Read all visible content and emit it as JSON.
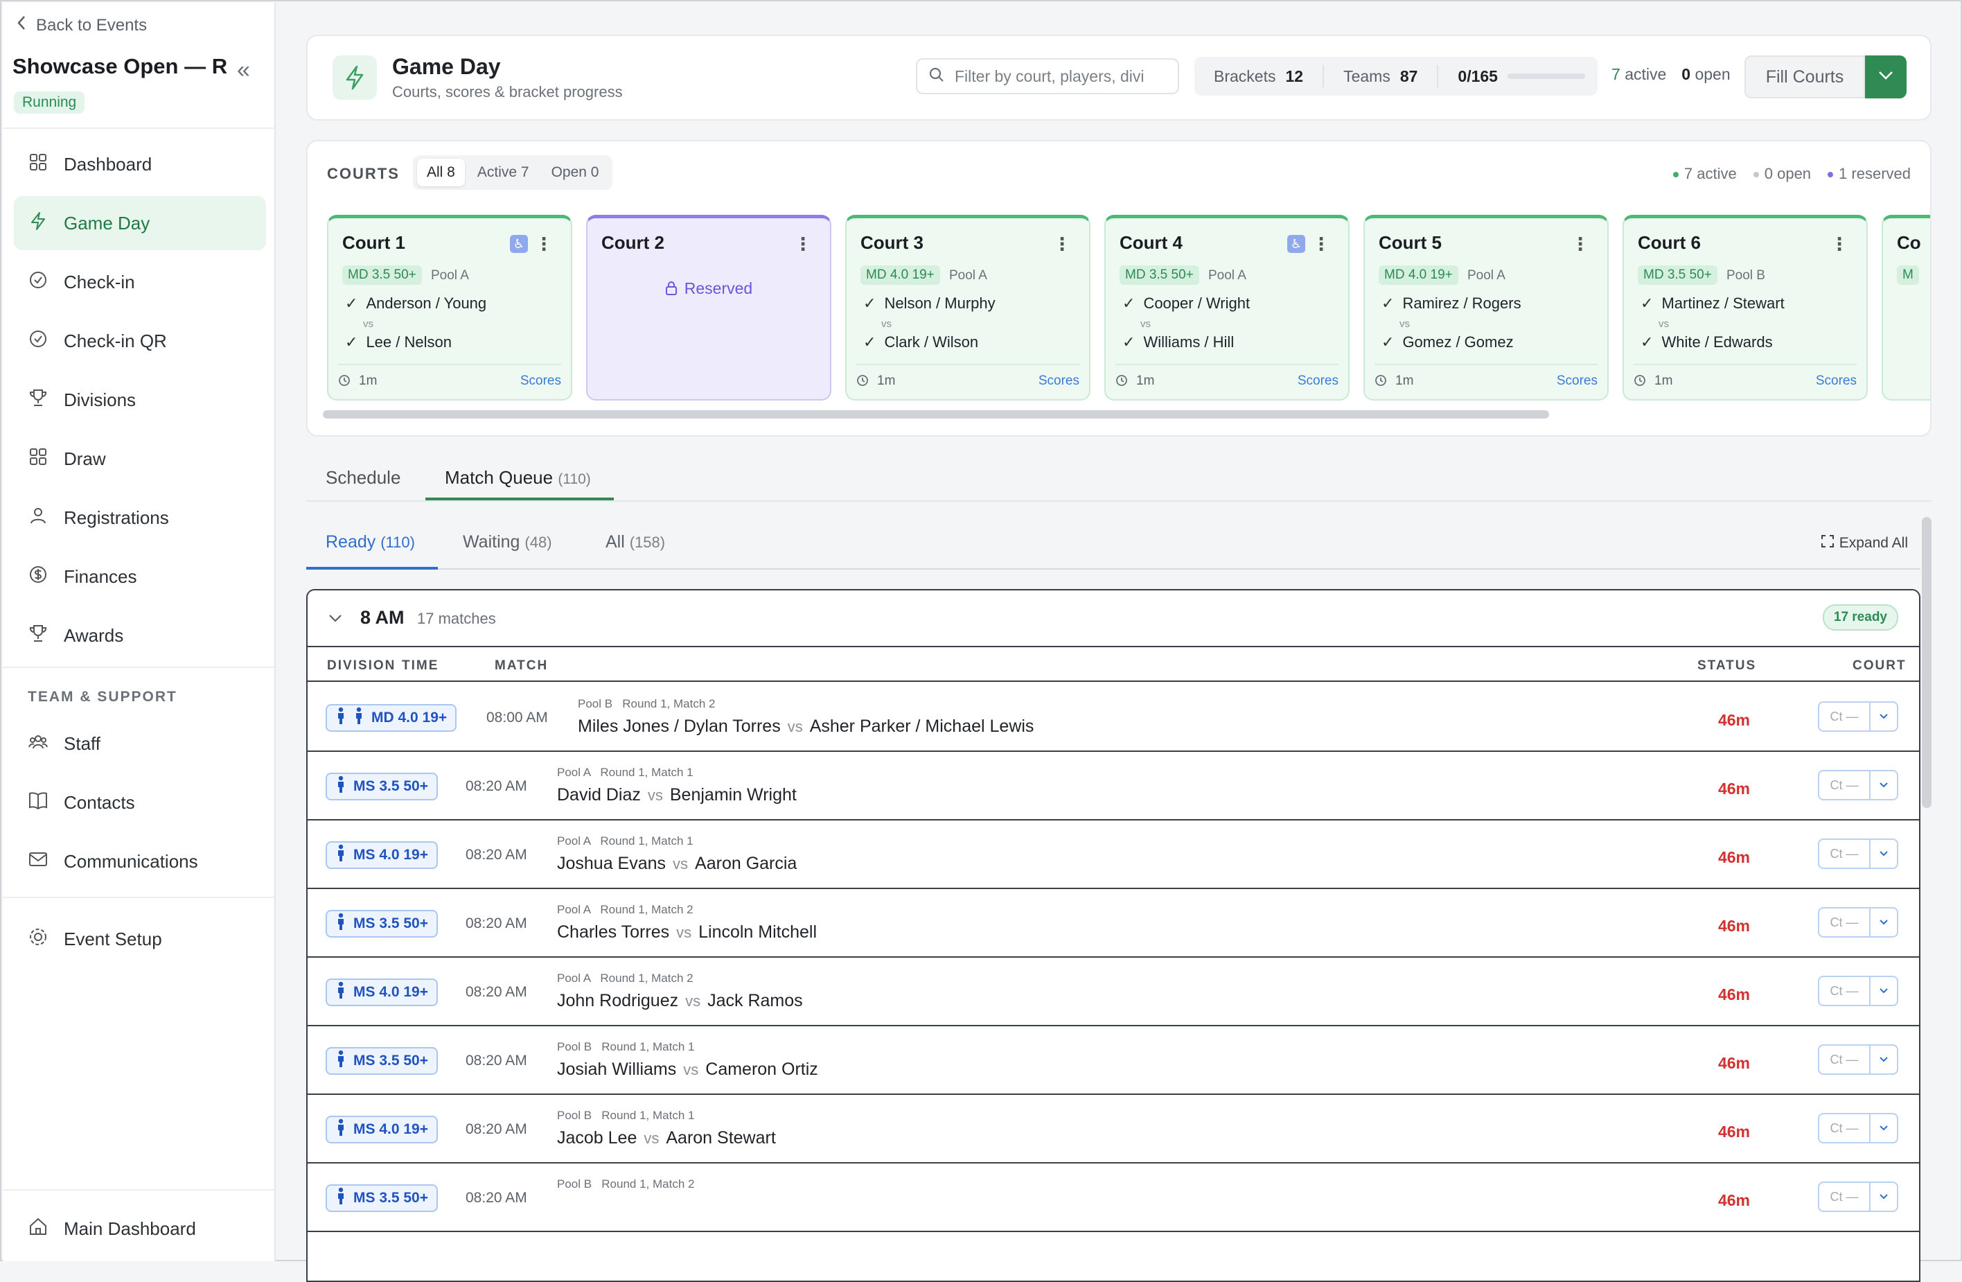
{
  "sidebar": {
    "back_label": "Back to Events",
    "event_title": "Showcase Open — R...",
    "status_badge": "Running",
    "collapse_icon": "«",
    "nav": [
      {
        "label": "Dashboard",
        "icon": "grid-icon"
      },
      {
        "label": "Game Day",
        "icon": "bolt-icon"
      },
      {
        "label": "Check-in",
        "icon": "check-circle-icon"
      },
      {
        "label": "Check-in QR",
        "icon": "check-circle-icon"
      },
      {
        "label": "Divisions",
        "icon": "trophy-icon"
      },
      {
        "label": "Draw",
        "icon": "grid-icon"
      },
      {
        "label": "Registrations",
        "icon": "user-icon"
      },
      {
        "label": "Finances",
        "icon": "dollar-icon"
      },
      {
        "label": "Awards",
        "icon": "trophy-icon"
      }
    ],
    "team_section_label": "TEAM & SUPPORT",
    "team_nav": [
      {
        "label": "Staff",
        "icon": "users-icon"
      },
      {
        "label": "Contacts",
        "icon": "book-icon"
      },
      {
        "label": "Communications",
        "icon": "mail-icon"
      }
    ],
    "setup": {
      "label": "Event Setup",
      "icon": "gear-icon"
    },
    "footer": {
      "label": "Main Dashboard",
      "icon": "home-icon"
    }
  },
  "header": {
    "title": "Game Day",
    "subtitle": "Courts, scores & bracket progress",
    "search_placeholder": "Filter by court, players, divi",
    "brackets_label": "Brackets",
    "brackets_value": "12",
    "teams_label": "Teams",
    "teams_value": "87",
    "progress_text": "0/165",
    "progress_fraction": 0,
    "active_count": "7",
    "active_label": "active",
    "open_count": "0",
    "open_label": "open",
    "fill_courts_label": "Fill Courts"
  },
  "courts": {
    "section_label": "COURTS",
    "filters": [
      {
        "label": "All",
        "count": "8"
      },
      {
        "label": "Active",
        "count": "7"
      },
      {
        "label": "Open",
        "count": "0"
      }
    ],
    "legend": [
      "7 active",
      "0 open",
      "1 reserved"
    ],
    "legend_colors": [
      "#3fb06a",
      "#c5c9ce",
      "#7e6fe3"
    ],
    "cards": [
      {
        "name": "Court 1",
        "accessible": true,
        "division": "MD 3.5 50+",
        "pool": "Pool A",
        "team1": "Anderson / Young",
        "team2": "Lee / Nelson",
        "elapsed": "1m",
        "scores": "Scores"
      },
      {
        "name": "Court 2",
        "reserved": true,
        "reserved_label": "Reserved"
      },
      {
        "name": "Court 3",
        "accessible": false,
        "division": "MD 4.0 19+",
        "pool": "Pool A",
        "team1": "Nelson / Murphy",
        "team2": "Clark / Wilson",
        "elapsed": "1m",
        "scores": "Scores"
      },
      {
        "name": "Court 4",
        "accessible": true,
        "division": "MD 3.5 50+",
        "pool": "Pool A",
        "team1": "Cooper / Wright",
        "team2": "Williams / Hill",
        "elapsed": "1m",
        "scores": "Scores"
      },
      {
        "name": "Court 5",
        "accessible": false,
        "division": "MD 4.0 19+",
        "pool": "Pool A",
        "team1": "Ramirez / Rogers",
        "team2": "Gomez / Gomez",
        "elapsed": "1m",
        "scores": "Scores"
      },
      {
        "name": "Court 6",
        "accessible": false,
        "division": "MD 3.5 50+",
        "pool": "Pool B",
        "team1": "Martinez / Stewart",
        "team2": "White / Edwards",
        "elapsed": "1m",
        "scores": "Scores"
      },
      {
        "name": "Co",
        "accessible": false,
        "division": "M",
        "pool": "",
        "team1": "",
        "team2": "",
        "elapsed": "",
        "scores": ""
      }
    ],
    "vs_label": "vs"
  },
  "tabs": [
    {
      "label": "Schedule",
      "count": ""
    },
    {
      "label": "Match Queue",
      "count": "(110)"
    }
  ],
  "subtabs": [
    {
      "label": "Ready",
      "count": "(110)"
    },
    {
      "label": "Waiting",
      "count": "(48)"
    },
    {
      "label": "All",
      "count": "(158)"
    }
  ],
  "expand_label": "Expand All",
  "group": {
    "time": "8 AM",
    "count": "17 matches",
    "ready_badge": "17 ready",
    "columns": [
      "DIVISION",
      "TIME",
      "MATCH",
      "STATUS",
      "COURT"
    ]
  },
  "matches": [
    {
      "division": "MD 4.0 19+",
      "doubles": true,
      "time": "08:00 AM",
      "pool_round": "Pool B   Round 1, Match 2",
      "team1": "Miles Jones / Dylan Torres",
      "team2": "Asher Parker / Michael Lewis",
      "status": "46m",
      "court": "Ct —"
    },
    {
      "division": "MS 3.5 50+",
      "doubles": false,
      "time": "08:20 AM",
      "pool_round": "Pool A   Round 1, Match 1",
      "team1": "David Diaz",
      "team2": "Benjamin Wright",
      "status": "46m",
      "court": "Ct —"
    },
    {
      "division": "MS 4.0 19+",
      "doubles": false,
      "time": "08:20 AM",
      "pool_round": "Pool A   Round 1, Match 1",
      "team1": "Joshua Evans",
      "team2": "Aaron Garcia",
      "status": "46m",
      "court": "Ct —"
    },
    {
      "division": "MS 3.5 50+",
      "doubles": false,
      "time": "08:20 AM",
      "pool_round": "Pool A   Round 1, Match 2",
      "team1": "Charles Torres",
      "team2": "Lincoln Mitchell",
      "status": "46m",
      "court": "Ct —"
    },
    {
      "division": "MS 4.0 19+",
      "doubles": false,
      "time": "08:20 AM",
      "pool_round": "Pool A   Round 1, Match 2",
      "team1": "John Rodriguez",
      "team2": "Jack Ramos",
      "status": "46m",
      "court": "Ct —"
    },
    {
      "division": "MS 3.5 50+",
      "doubles": false,
      "time": "08:20 AM",
      "pool_round": "Pool B   Round 1, Match 1",
      "team1": "Josiah Williams",
      "team2": "Cameron Ortiz",
      "status": "46m",
      "court": "Ct —"
    },
    {
      "division": "MS 4.0 19+",
      "doubles": false,
      "time": "08:20 AM",
      "pool_round": "Pool B   Round 1, Match 1",
      "team1": "Jacob Lee",
      "team2": "Aaron Stewart",
      "status": "46m",
      "court": "Ct —"
    },
    {
      "division": "MS 3.5 50+",
      "doubles": false,
      "time": "08:20 AM",
      "pool_round": "Pool B   Round 1, Match 2",
      "team1": "",
      "team2": "",
      "status": "46m",
      "court": "Ct —"
    }
  ]
}
